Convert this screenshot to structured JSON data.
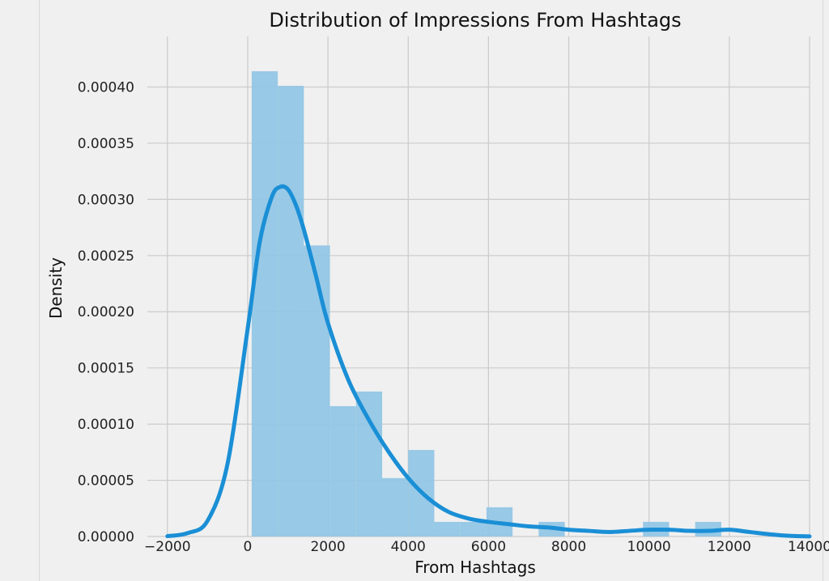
{
  "chart_data": {
    "type": "histogram",
    "title": "Distribution of Impressions From Hashtags",
    "xlabel": "From Hashtags",
    "ylabel": "Density",
    "xlim": [
      -2500,
      14000
    ],
    "ylim": [
      0,
      0.000445
    ],
    "x_ticks": [
      -2000,
      0,
      2000,
      4000,
      6000,
      8000,
      10000,
      12000,
      14000
    ],
    "x_tick_labels": [
      "−2000",
      "0",
      "2000",
      "4000",
      "6000",
      "8000",
      "10000",
      "12000",
      "14000"
    ],
    "y_ticks": [
      0,
      5e-05,
      0.0001,
      0.00015,
      0.0002,
      0.00025,
      0.0003,
      0.00035,
      0.0004
    ],
    "y_tick_labels": [
      "0.00000",
      "0.00005",
      "0.00010",
      "0.00015",
      "0.00020",
      "0.00025",
      "0.00030",
      "0.00035",
      "0.00040"
    ],
    "grid": true,
    "histogram": {
      "bin_edges": [
        100,
        750,
        1400,
        2050,
        2700,
        3350,
        4000,
        4650,
        5300,
        5950,
        6600,
        7250,
        7900,
        8550,
        9200,
        9850,
        10500,
        11150,
        11800
      ],
      "densities": [
        0.000414,
        0.000401,
        0.000259,
        0.000116,
        0.000129,
        5.2e-05,
        7.7e-05,
        1.3e-05,
        1.3e-05,
        2.6e-05,
        0.0,
        1.3e-05,
        0.0,
        0.0,
        0.0,
        1.3e-05,
        0.0,
        1.3e-05
      ],
      "color": "#92c6e5"
    },
    "kde": {
      "x": [
        -2000,
        -1500,
        -1000,
        -500,
        0,
        300,
        600,
        800,
        1000,
        1200,
        1400,
        1700,
        2000,
        2500,
        3000,
        3500,
        4000,
        4500,
        5000,
        5500,
        6000,
        6500,
        7000,
        7500,
        8000,
        8500,
        9000,
        9500,
        10000,
        10500,
        11000,
        11500,
        12000,
        12500,
        13000,
        13500,
        14000
      ],
      "y": [
        3e-07,
        3e-06,
        1.4e-05,
        6.5e-05,
        0.000185,
        0.000262,
        0.000302,
        0.000311,
        0.000309,
        0.000295,
        0.000273,
        0.000232,
        0.00019,
        0.00014,
        0.000105,
        7.6e-05,
        5.2e-05,
        3.4e-05,
        2.2e-05,
        1.6e-05,
        1.3e-05,
        1.1e-05,
        9e-06,
        8e-06,
        6e-06,
        5e-06,
        4e-06,
        5e-06,
        6e-06,
        6e-06,
        5e-06,
        5e-06,
        6e-06,
        4e-06,
        2e-06,
        6e-07,
        1e-07
      ],
      "color": "#1a8fd6"
    }
  }
}
